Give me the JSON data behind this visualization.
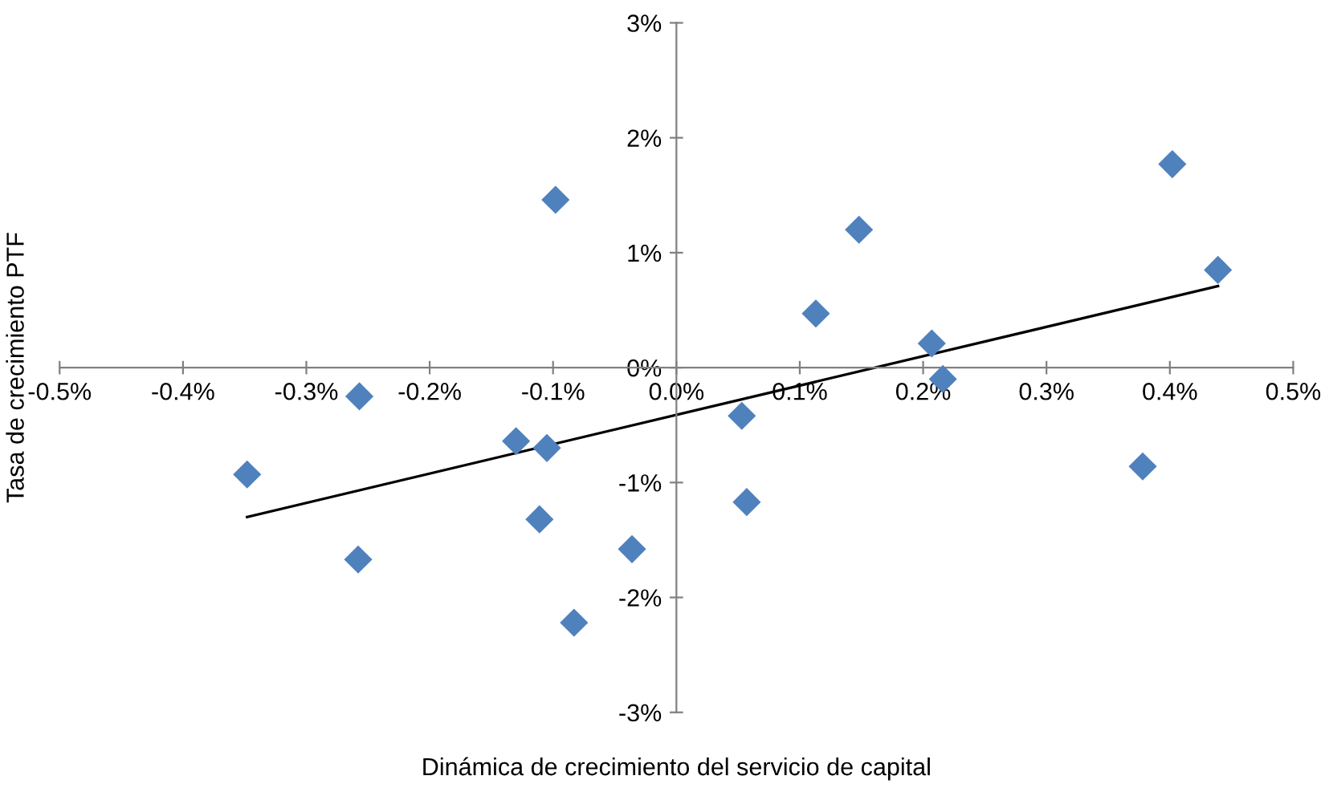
{
  "chart_data": {
    "type": "scatter",
    "xlabel": "Dinámica de crecimiento del servicio de capital",
    "ylabel": "Tasa de crecimiento PTF",
    "xlim": [
      -0.5,
      0.5
    ],
    "ylim": [
      -3,
      3
    ],
    "xticks": [
      {
        "value": -0.5,
        "label": "-0.5%"
      },
      {
        "value": -0.4,
        "label": "-0.4%"
      },
      {
        "value": -0.3,
        "label": "-0.3%"
      },
      {
        "value": -0.2,
        "label": "-0.2%"
      },
      {
        "value": -0.1,
        "label": "-0.1%"
      },
      {
        "value": 0,
        "label": "0.0%"
      },
      {
        "value": 0.1,
        "label": "0.1%"
      },
      {
        "value": 0.2,
        "label": "0.2%"
      },
      {
        "value": 0.3,
        "label": "0.3%"
      },
      {
        "value": 0.4,
        "label": "0.4%"
      },
      {
        "value": 0.5,
        "label": "0.5%"
      }
    ],
    "yticks": [
      {
        "value": -3,
        "label": "-3%"
      },
      {
        "value": -2,
        "label": "-2%"
      },
      {
        "value": -1,
        "label": "-1%"
      },
      {
        "value": 0,
        "label": "0%"
      },
      {
        "value": 1,
        "label": "1%"
      },
      {
        "value": 2,
        "label": "2%"
      },
      {
        "value": 3,
        "label": "3%"
      }
    ],
    "grid": false,
    "series": [
      {
        "marker": "diamond",
        "color": "#4f81bd",
        "x": [
          -0.348,
          -0.257,
          -0.258,
          -0.13,
          -0.105,
          -0.098,
          -0.111,
          -0.083,
          -0.036,
          0.053,
          0.057,
          0.113,
          0.148,
          0.207,
          0.216,
          0.378,
          0.402,
          0.439
        ],
        "values": [
          -0.93,
          -0.25,
          -1.67,
          -0.64,
          -0.7,
          1.46,
          -1.32,
          -2.22,
          -1.58,
          -0.42,
          -1.17,
          0.47,
          1.2,
          0.21,
          -0.1,
          -0.86,
          1.77,
          0.85
        ]
      },
      {
        "type": "line",
        "color": "#000000",
        "x": [
          -0.348,
          0.439
        ],
        "values": [
          -1.3,
          0.71
        ]
      }
    ]
  }
}
